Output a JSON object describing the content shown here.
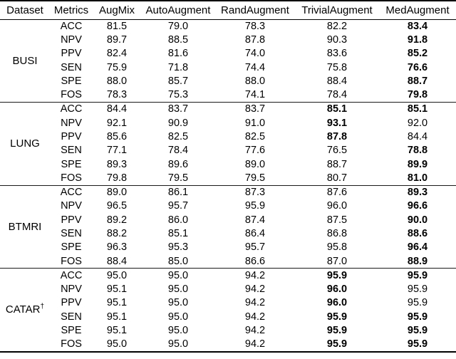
{
  "table": {
    "headers": [
      "Dataset",
      "Metrics",
      "AugMix",
      "AutoAugment",
      "RandAugment",
      "TrivialAugment",
      "MedAugment"
    ],
    "groups": [
      {
        "dataset": "BUSI",
        "sup": "",
        "rows": [
          {
            "metric": "ACC",
            "values": [
              "81.5",
              "79.0",
              "78.3",
              "82.2",
              "83.4"
            ],
            "bold": [
              false,
              false,
              false,
              false,
              true
            ]
          },
          {
            "metric": "NPV",
            "values": [
              "89.7",
              "88.5",
              "87.8",
              "90.3",
              "91.8"
            ],
            "bold": [
              false,
              false,
              false,
              false,
              true
            ]
          },
          {
            "metric": "PPV",
            "values": [
              "82.4",
              "81.6",
              "74.0",
              "83.6",
              "85.2"
            ],
            "bold": [
              false,
              false,
              false,
              false,
              true
            ]
          },
          {
            "metric": "SEN",
            "values": [
              "75.9",
              "71.8",
              "74.4",
              "75.8",
              "76.6"
            ],
            "bold": [
              false,
              false,
              false,
              false,
              true
            ]
          },
          {
            "metric": "SPE",
            "values": [
              "88.0",
              "85.7",
              "88.0",
              "88.4",
              "88.7"
            ],
            "bold": [
              false,
              false,
              false,
              false,
              true
            ]
          },
          {
            "metric": "FOS",
            "values": [
              "78.3",
              "75.3",
              "74.1",
              "78.4",
              "79.8"
            ],
            "bold": [
              false,
              false,
              false,
              false,
              true
            ]
          }
        ]
      },
      {
        "dataset": "LUNG",
        "sup": "",
        "rows": [
          {
            "metric": "ACC",
            "values": [
              "84.4",
              "83.7",
              "83.7",
              "85.1",
              "85.1"
            ],
            "bold": [
              false,
              false,
              false,
              true,
              true
            ]
          },
          {
            "metric": "NPV",
            "values": [
              "92.1",
              "90.9",
              "91.0",
              "93.1",
              "92.0"
            ],
            "bold": [
              false,
              false,
              false,
              true,
              false
            ]
          },
          {
            "metric": "PPV",
            "values": [
              "85.6",
              "82.5",
              "82.5",
              "87.8",
              "84.4"
            ],
            "bold": [
              false,
              false,
              false,
              true,
              false
            ]
          },
          {
            "metric": "SEN",
            "values": [
              "77.1",
              "78.4",
              "77.6",
              "76.5",
              "78.8"
            ],
            "bold": [
              false,
              false,
              false,
              false,
              true
            ]
          },
          {
            "metric": "SPE",
            "values": [
              "89.3",
              "89.6",
              "89.0",
              "88.7",
              "89.9"
            ],
            "bold": [
              false,
              false,
              false,
              false,
              true
            ]
          },
          {
            "metric": "FOS",
            "values": [
              "79.8",
              "79.5",
              "79.5",
              "80.7",
              "81.0"
            ],
            "bold": [
              false,
              false,
              false,
              false,
              true
            ]
          }
        ]
      },
      {
        "dataset": "BTMRI",
        "sup": "",
        "rows": [
          {
            "metric": "ACC",
            "values": [
              "89.0",
              "86.1",
              "87.3",
              "87.6",
              "89.3"
            ],
            "bold": [
              false,
              false,
              false,
              false,
              true
            ]
          },
          {
            "metric": "NPV",
            "values": [
              "96.5",
              "95.7",
              "95.9",
              "96.0",
              "96.6"
            ],
            "bold": [
              false,
              false,
              false,
              false,
              true
            ]
          },
          {
            "metric": "PPV",
            "values": [
              "89.2",
              "86.0",
              "87.4",
              "87.5",
              "90.0"
            ],
            "bold": [
              false,
              false,
              false,
              false,
              true
            ]
          },
          {
            "metric": "SEN",
            "values": [
              "88.2",
              "85.1",
              "86.4",
              "86.8",
              "88.6"
            ],
            "bold": [
              false,
              false,
              false,
              false,
              true
            ]
          },
          {
            "metric": "SPE",
            "values": [
              "96.3",
              "95.3",
              "95.7",
              "95.8",
              "96.4"
            ],
            "bold": [
              false,
              false,
              false,
              false,
              true
            ]
          },
          {
            "metric": "FOS",
            "values": [
              "88.4",
              "85.0",
              "86.6",
              "87.0",
              "88.9"
            ],
            "bold": [
              false,
              false,
              false,
              false,
              true
            ]
          }
        ]
      },
      {
        "dataset": "CATAR",
        "sup": "†",
        "rows": [
          {
            "metric": "ACC",
            "values": [
              "95.0",
              "95.0",
              "94.2",
              "95.9",
              "95.9"
            ],
            "bold": [
              false,
              false,
              false,
              true,
              true
            ]
          },
          {
            "metric": "NPV",
            "values": [
              "95.1",
              "95.0",
              "94.2",
              "96.0",
              "95.9"
            ],
            "bold": [
              false,
              false,
              false,
              true,
              false
            ]
          },
          {
            "metric": "PPV",
            "values": [
              "95.1",
              "95.0",
              "94.2",
              "96.0",
              "95.9"
            ],
            "bold": [
              false,
              false,
              false,
              true,
              false
            ]
          },
          {
            "metric": "SEN",
            "values": [
              "95.1",
              "95.0",
              "94.2",
              "95.9",
              "95.9"
            ],
            "bold": [
              false,
              false,
              false,
              true,
              true
            ]
          },
          {
            "metric": "SPE",
            "values": [
              "95.1",
              "95.0",
              "94.2",
              "95.9",
              "95.9"
            ],
            "bold": [
              false,
              false,
              false,
              true,
              true
            ]
          },
          {
            "metric": "FOS",
            "values": [
              "95.0",
              "95.0",
              "94.2",
              "95.9",
              "95.9"
            ],
            "bold": [
              false,
              false,
              false,
              true,
              true
            ]
          }
        ]
      }
    ]
  }
}
